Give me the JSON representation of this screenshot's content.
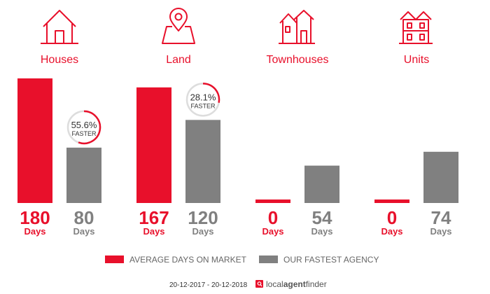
{
  "colors": {
    "accent": "#e8102b",
    "secondary": "#808080",
    "track": "#dddddd"
  },
  "chart_data": {
    "type": "bar",
    "categories": [
      "Houses",
      "Land",
      "Townhouses",
      "Units"
    ],
    "category_icons": [
      "house-icon",
      "land-pin-icon",
      "townhouses-icon",
      "units-icon"
    ],
    "series": [
      {
        "name": "AVERAGE DAYS ON MARKET",
        "values": [
          180,
          167,
          0,
          0
        ]
      },
      {
        "name": "OUR FASTEST AGENCY",
        "values": [
          80,
          120,
          54,
          74
        ]
      }
    ],
    "unit_label": "Days",
    "ylim": [
      0,
      180
    ],
    "badges": [
      {
        "category": "Houses",
        "percent": "55.6%",
        "percent_value": 55.6,
        "word": "FASTER"
      },
      {
        "category": "Land",
        "percent": "28.1%",
        "percent_value": 28.1,
        "word": "FASTER"
      }
    ],
    "legend_position": "bottom",
    "grid": false
  },
  "footer": {
    "date_range": "20-12-2017 - 20-12-2018",
    "brand_prefix": "local",
    "brand_middle": "agent",
    "brand_suffix": "finder"
  }
}
